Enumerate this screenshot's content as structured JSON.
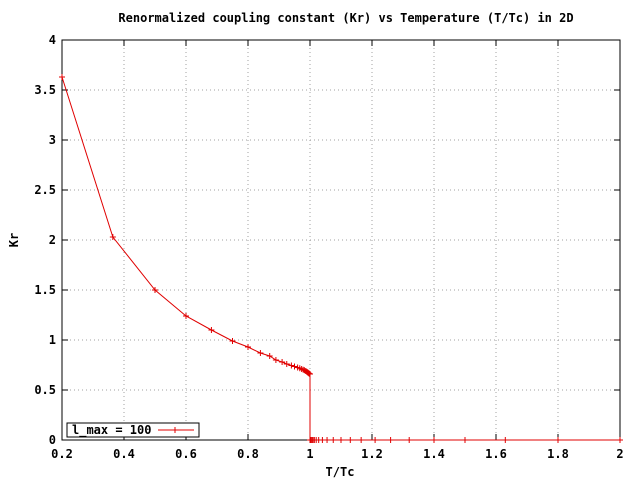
{
  "chart_data": {
    "type": "line",
    "title": "Renormalized coupling constant (Kr) vs Temperature (T/Tc) in 2D",
    "xlabel": "T/Tc",
    "ylabel": "Kr",
    "xlim": [
      0.2,
      2
    ],
    "ylim": [
      0,
      4
    ],
    "xticks": [
      "0.2",
      "0.4",
      "0.6",
      "0.8",
      "1",
      "1.2",
      "1.4",
      "1.6",
      "1.8",
      "2"
    ],
    "yticks": [
      "0",
      "0.5",
      "1",
      "1.5",
      "2",
      "2.5",
      "3",
      "3.5",
      "4"
    ],
    "grid": true,
    "legend_position": "bottom-left",
    "color": "#e00000",
    "series": [
      {
        "name": "l_max = 100",
        "x": [
          0.2,
          0.364,
          0.5,
          0.6,
          0.682,
          0.75,
          0.8,
          0.84,
          0.87,
          0.89,
          0.91,
          0.925,
          0.94,
          0.95,
          0.96,
          0.967,
          0.973,
          0.978,
          0.982,
          0.986,
          0.989,
          0.992,
          0.994,
          0.996,
          0.998,
          1.0,
          1.0,
          1.002,
          1.004,
          1.007,
          1.01,
          1.014,
          1.02,
          1.028,
          1.04,
          1.055,
          1.075,
          1.1,
          1.13,
          1.165,
          1.21,
          1.26,
          1.32,
          1.4,
          1.5,
          1.63,
          1.8,
          2.0
        ],
        "y": [
          3.63,
          2.03,
          1.5,
          1.24,
          1.1,
          0.99,
          0.93,
          0.87,
          0.84,
          0.8,
          0.78,
          0.76,
          0.745,
          0.735,
          0.725,
          0.718,
          0.71,
          0.703,
          0.697,
          0.69,
          0.684,
          0.678,
          0.673,
          0.668,
          0.663,
          0.66,
          0,
          0,
          0,
          0,
          0,
          0,
          0,
          0,
          0,
          0,
          0,
          0,
          0,
          0,
          0,
          0,
          0,
          0,
          0,
          0,
          0,
          0
        ]
      }
    ]
  }
}
